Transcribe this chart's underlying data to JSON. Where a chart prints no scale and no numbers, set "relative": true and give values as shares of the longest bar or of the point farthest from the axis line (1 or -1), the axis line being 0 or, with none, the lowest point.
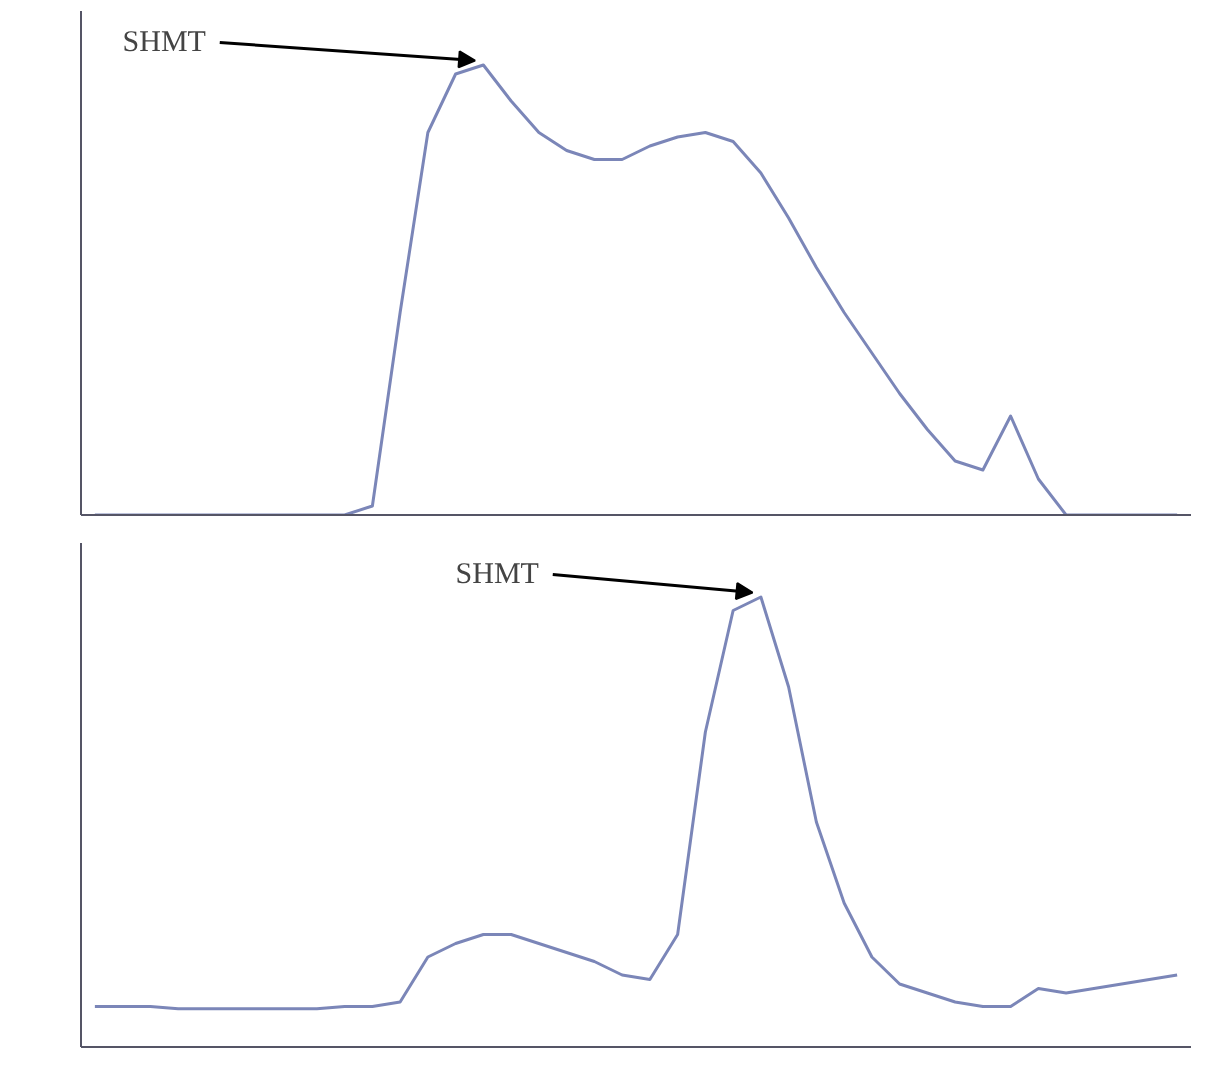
{
  "chart_data": [
    {
      "type": "line",
      "relative": true,
      "tick_labels": false,
      "marker": "none",
      "line_style": "solid",
      "annotations": [
        "SHMT"
      ],
      "categories": [
        null,
        null,
        null,
        null,
        null,
        null,
        null,
        null,
        null,
        null,
        null,
        null,
        null,
        null,
        null,
        null,
        null,
        null,
        null,
        null,
        null,
        null,
        null,
        null,
        null,
        null,
        null,
        null,
        null,
        null,
        null,
        null,
        null,
        null,
        null,
        null,
        null,
        null,
        null,
        null
      ],
      "series": [
        {
          "color": "#7b86b8",
          "values": [
            0,
            0,
            0,
            0,
            0,
            0,
            0,
            0,
            0,
            0,
            0.02,
            0.45,
            0.85,
            0.98,
            1,
            0.92,
            0.85,
            0.81,
            0.79,
            0.79,
            0.82,
            0.84,
            0.85,
            0.83,
            0.76,
            0.66,
            0.55,
            0.45,
            0.36,
            0.27,
            0.19,
            0.12,
            0.1,
            0.22,
            0.08,
            0,
            0,
            0,
            0,
            0
          ]
        }
      ]
    },
    {
      "type": "line",
      "relative": true,
      "tick_labels": false,
      "marker": "none",
      "line_style": "solid",
      "annotations": [
        "SHMT"
      ],
      "categories": [
        null,
        null,
        null,
        null,
        null,
        null,
        null,
        null,
        null,
        null,
        null,
        null,
        null,
        null,
        null,
        null,
        null,
        null,
        null,
        null,
        null,
        null,
        null,
        null,
        null,
        null,
        null,
        null,
        null,
        null,
        null,
        null,
        null,
        null,
        null,
        null,
        null,
        null,
        null,
        null
      ],
      "series": [
        {
          "color": "#7b86b8",
          "values": [
            0.09,
            0.09,
            0.09,
            0.085,
            0.085,
            0.085,
            0.085,
            0.085,
            0.085,
            0.09,
            0.09,
            0.1,
            0.2,
            0.23,
            0.25,
            0.25,
            0.23,
            0.21,
            0.19,
            0.16,
            0.15,
            0.25,
            0.7,
            0.97,
            1,
            0.8,
            0.5,
            0.32,
            0.2,
            0.14,
            0.12,
            0.1,
            0.09,
            0.09,
            0.13,
            0.12,
            0.13,
            0.14,
            0.15,
            0.16
          ]
        }
      ]
    }
  ]
}
